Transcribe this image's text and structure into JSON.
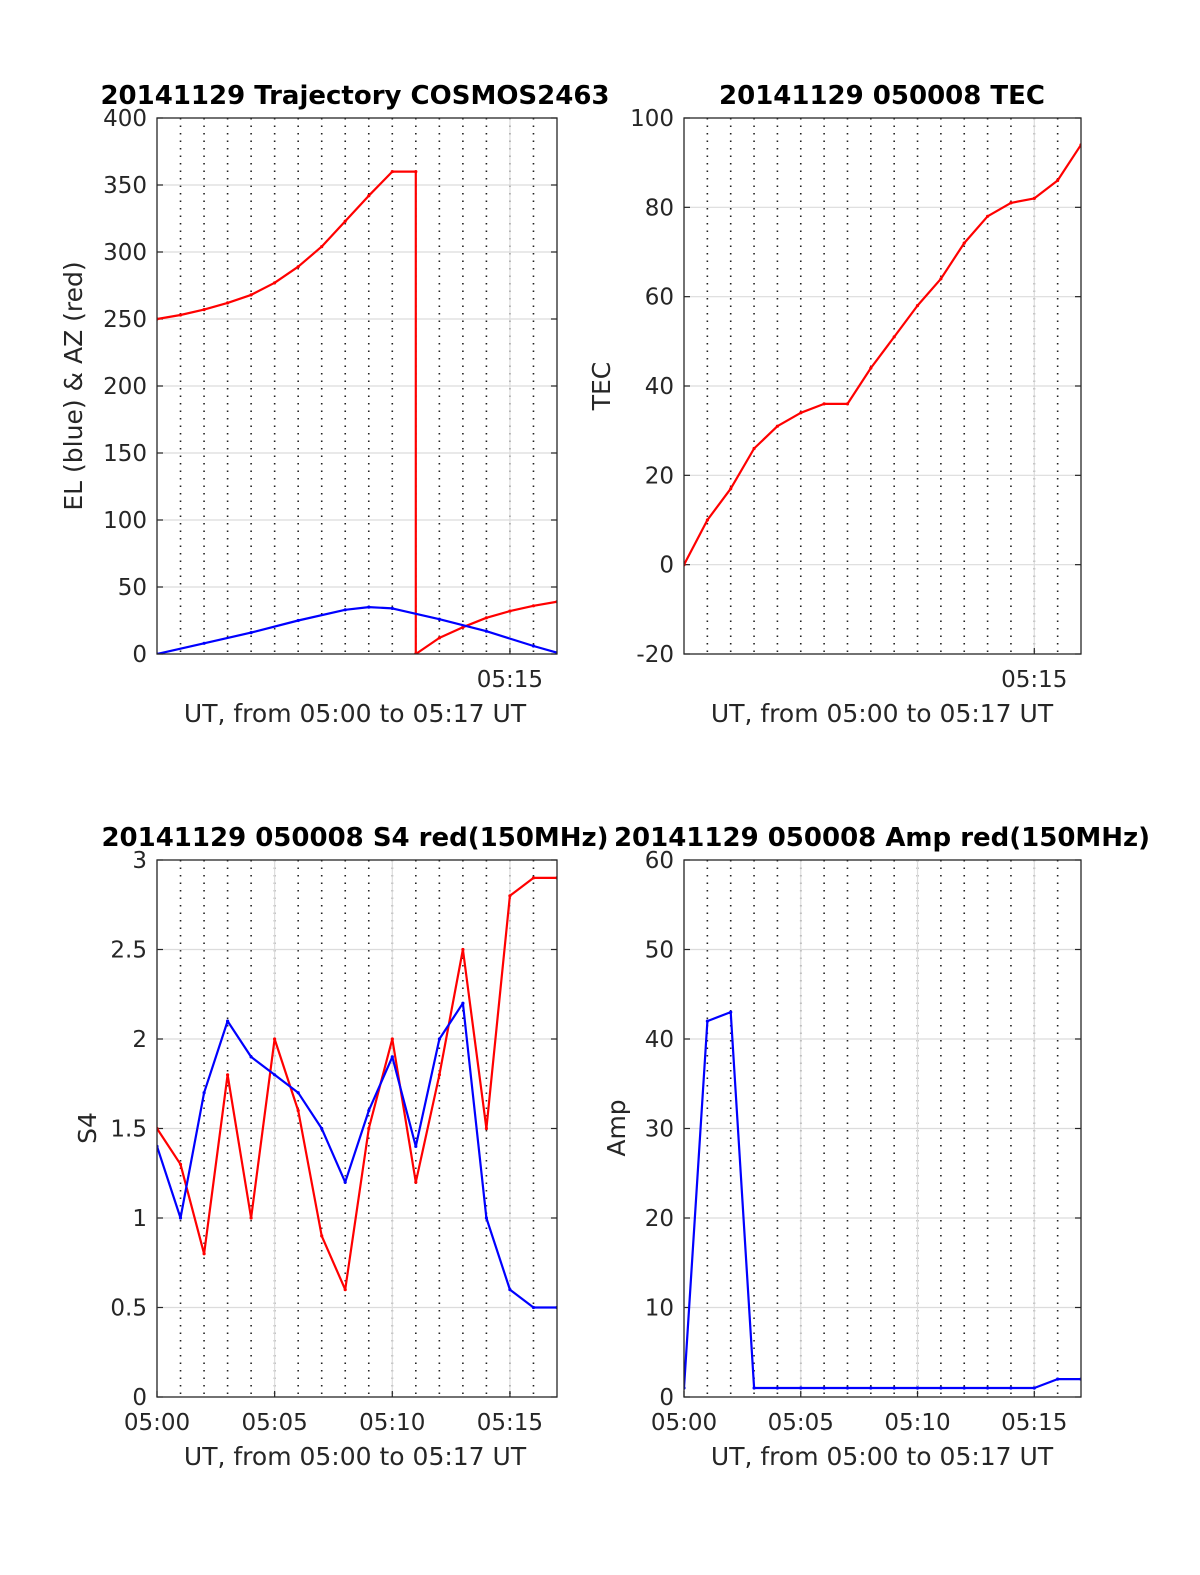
{
  "chart_data": [
    {
      "id": "trajectory",
      "type": "line",
      "title": "20141129 Trajectory COSMOS2463",
      "xlabel": "UT, from 05:00 to 05:17 UT",
      "ylabel": "EL (blue) & AZ (red)",
      "xlim": [
        "05:00",
        "05:17"
      ],
      "ylim": [
        0,
        400
      ],
      "yticks": [
        "0",
        "50",
        "100",
        "150",
        "200",
        "250",
        "300",
        "350",
        "400"
      ],
      "xticks": [
        "05:15"
      ],
      "grid": true,
      "series": [
        {
          "color": "#ff0000",
          "x": [
            "05:00",
            "05:01",
            "05:02",
            "05:03",
            "05:04",
            "05:05",
            "05:06",
            "05:07",
            "05:08",
            "05:09",
            "05:10",
            "05:11",
            "05:11"
          ],
          "values": [
            250,
            253,
            257,
            262,
            268,
            277,
            289,
            304,
            323,
            342,
            360,
            360,
            0
          ]
        },
        {
          "color": "#ff0000",
          "x": [
            "05:11",
            "05:12",
            "05:13",
            "05:14",
            "05:15",
            "05:16",
            "05:17"
          ],
          "values": [
            0,
            12,
            20,
            27,
            32,
            36,
            39
          ]
        },
        {
          "color": "#0000ff",
          "x": [
            "05:00",
            "05:02",
            "05:04",
            "05:06",
            "05:08",
            "05:09",
            "05:10",
            "05:12",
            "05:14",
            "05:16",
            "05:17"
          ],
          "values": [
            0,
            8,
            16,
            25,
            33,
            35,
            34,
            26,
            17,
            6,
            1
          ]
        }
      ]
    },
    {
      "id": "tec",
      "type": "line",
      "title": "20141129 050008 TEC",
      "xlabel": "UT, from 05:00 to 05:17 UT",
      "ylabel": "TEC",
      "xlim": [
        "05:00",
        "05:17"
      ],
      "ylim": [
        -20,
        100
      ],
      "yticks": [
        "-20",
        "0",
        "20",
        "40",
        "60",
        "80",
        "100"
      ],
      "xticks": [
        "05:15"
      ],
      "grid": true,
      "series": [
        {
          "color": "#ff0000",
          "x": [
            "05:00",
            "05:01",
            "05:02",
            "05:03",
            "05:04",
            "05:05",
            "05:06",
            "05:07",
            "05:08",
            "05:09",
            "05:10",
            "05:11",
            "05:12",
            "05:13",
            "05:14",
            "05:15",
            "05:16",
            "05:17"
          ],
          "values": [
            0,
            10,
            17,
            26,
            31,
            34,
            36,
            36,
            44,
            51,
            58,
            64,
            72,
            78,
            81,
            82,
            86,
            94
          ]
        }
      ]
    },
    {
      "id": "s4",
      "type": "line",
      "title": "20141129 050008 S4 red(150MHz)",
      "xlabel": "UT, from 05:00 to 05:17 UT",
      "ylabel": "S4",
      "xlim": [
        "05:00",
        "05:17"
      ],
      "ylim": [
        0,
        3
      ],
      "yticks": [
        "0",
        "0.5",
        "1",
        "1.5",
        "2",
        "2.5",
        "3"
      ],
      "xticks": [
        "05:00",
        "05:05",
        "05:10",
        "05:15"
      ],
      "grid": true,
      "series": [
        {
          "color": "#ff0000",
          "x": [
            "05:00",
            "05:01",
            "05:02",
            "05:03",
            "05:04",
            "05:05",
            "05:06",
            "05:07",
            "05:08",
            "05:09",
            "05:10",
            "05:11",
            "05:12",
            "05:13",
            "05:14",
            "05:15",
            "05:16",
            "05:17"
          ],
          "values": [
            1.5,
            1.3,
            0.8,
            1.8,
            1.0,
            2.0,
            1.6,
            0.9,
            0.6,
            1.5,
            2.0,
            1.2,
            1.8,
            2.5,
            1.5,
            2.8,
            2.9,
            2.9
          ]
        },
        {
          "color": "#0000ff",
          "x": [
            "05:00",
            "05:01",
            "05:02",
            "05:03",
            "05:04",
            "05:05",
            "05:06",
            "05:07",
            "05:08",
            "05:09",
            "05:10",
            "05:11",
            "05:12",
            "05:13",
            "05:14",
            "05:15",
            "05:16",
            "05:17"
          ],
          "values": [
            1.4,
            1.0,
            1.7,
            2.1,
            1.9,
            1.8,
            1.7,
            1.5,
            1.2,
            1.6,
            1.9,
            1.4,
            2.0,
            2.2,
            1.0,
            0.6,
            0.5,
            0.5
          ]
        }
      ]
    },
    {
      "id": "amp",
      "type": "line",
      "title": "20141129 050008 Amp red(150MHz)",
      "xlabel": "UT, from 05:00 to 05:17 UT",
      "ylabel": "Amp",
      "xlim": [
        "05:00",
        "05:17"
      ],
      "ylim": [
        0,
        60
      ],
      "yticks": [
        "0",
        "10",
        "20",
        "30",
        "40",
        "50",
        "60"
      ],
      "xticks": [
        "05:00",
        "05:05",
        "05:10",
        "05:15"
      ],
      "grid": true,
      "series": [
        {
          "color": "#0000ff",
          "x": [
            "05:00",
            "05:01",
            "05:02",
            "05:03",
            "05:04",
            "05:05",
            "05:06",
            "05:07",
            "05:08",
            "05:09",
            "05:10",
            "05:11",
            "05:12",
            "05:13",
            "05:14",
            "05:15",
            "05:16",
            "05:17"
          ],
          "values": [
            1,
            42,
            43,
            1,
            1,
            1,
            1,
            1,
            1,
            1,
            1,
            1,
            1,
            1,
            1,
            1,
            2,
            2
          ]
        }
      ]
    }
  ]
}
